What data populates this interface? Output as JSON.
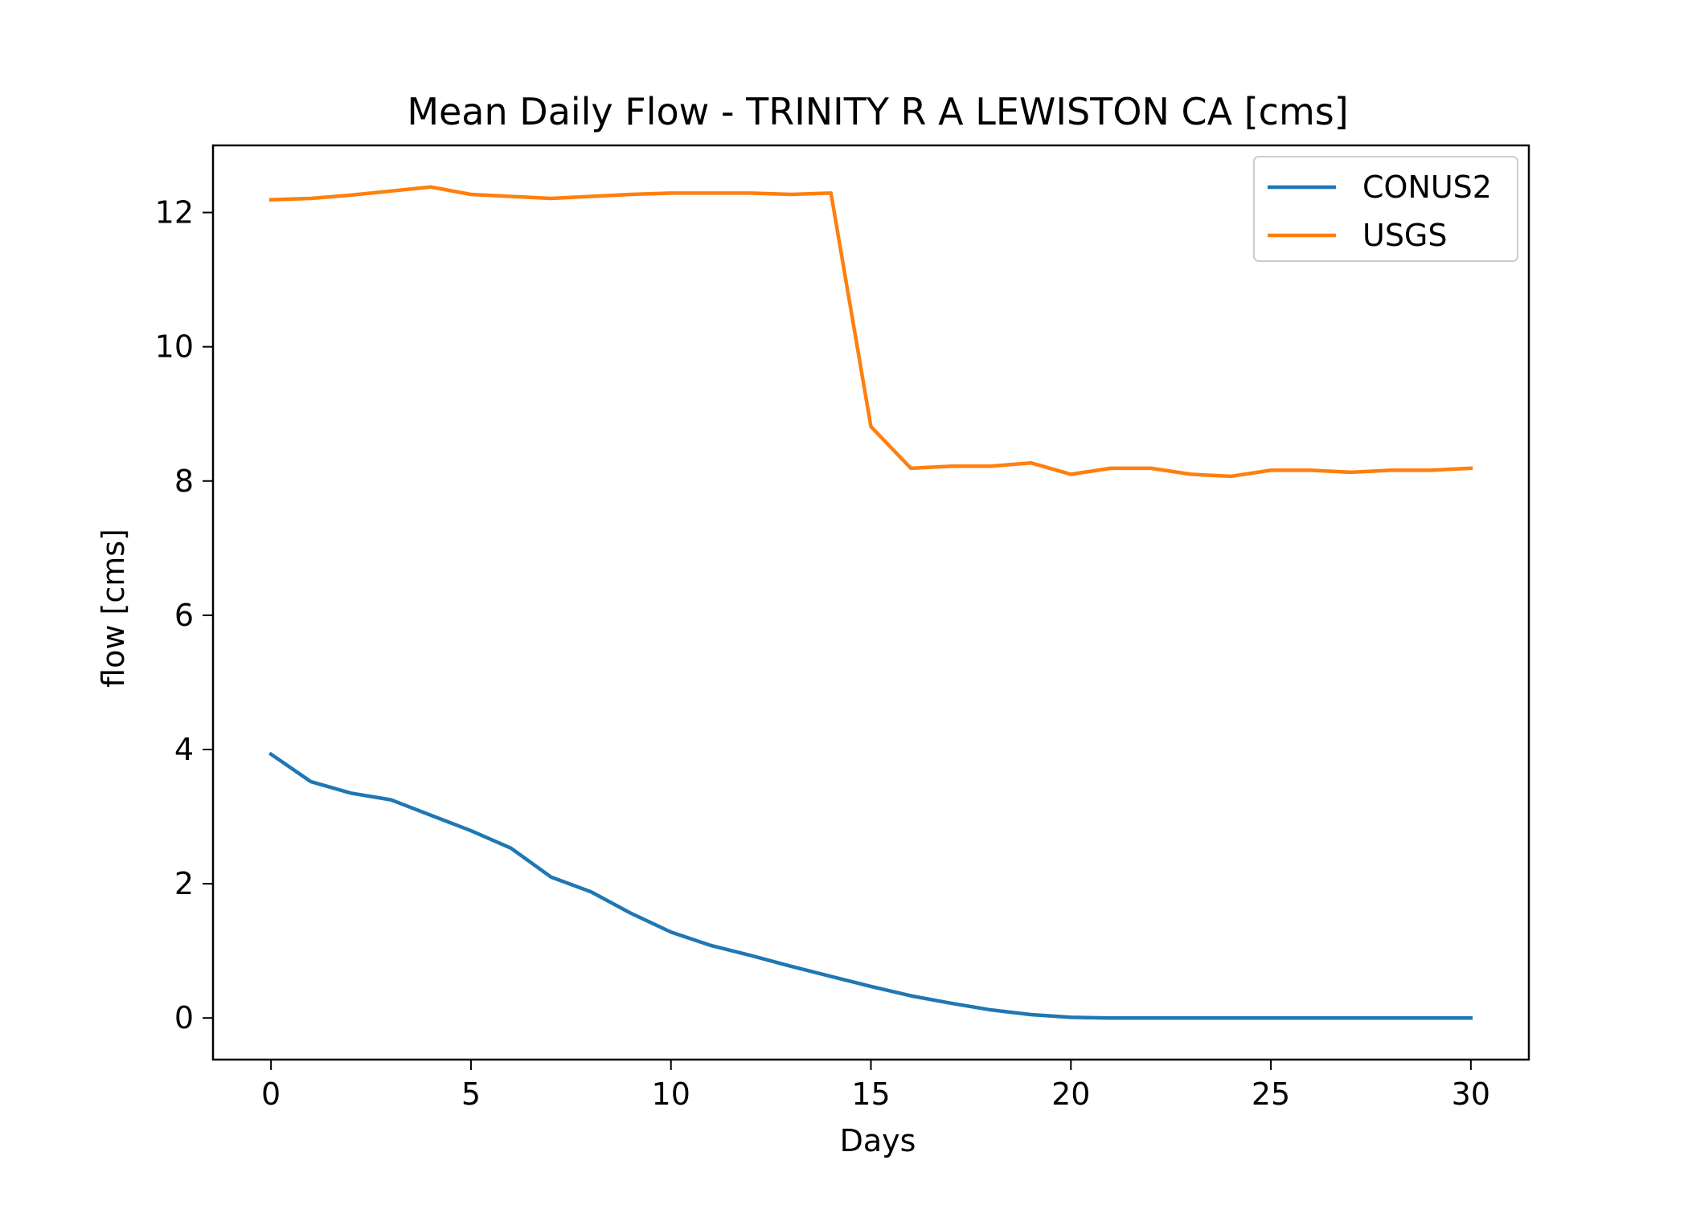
{
  "chart_data": {
    "type": "line",
    "title": "Mean Daily Flow - TRINITY R A LEWISTON CA [cms]",
    "xlabel": "Days",
    "ylabel": "flow [cms]",
    "xlim": [
      -1.45,
      31.45
    ],
    "ylim": [
      -0.62,
      13.0
    ],
    "xticks": [
      0,
      5,
      10,
      15,
      20,
      25,
      30
    ],
    "yticks": [
      0,
      2,
      4,
      6,
      8,
      10,
      12
    ],
    "grid": false,
    "legend_position": "upper right",
    "x": [
      0,
      1,
      2,
      3,
      4,
      5,
      6,
      7,
      8,
      9,
      10,
      11,
      12,
      13,
      14,
      15,
      16,
      17,
      18,
      19,
      20,
      21,
      22,
      23,
      24,
      25,
      26,
      27,
      28,
      29,
      30
    ],
    "series": [
      {
        "name": "CONUS2",
        "color": "#1f77b4",
        "values": [
          3.93,
          3.52,
          3.35,
          3.25,
          3.02,
          2.79,
          2.53,
          2.1,
          1.88,
          1.56,
          1.28,
          1.08,
          0.93,
          0.77,
          0.62,
          0.47,
          0.33,
          0.22,
          0.12,
          0.05,
          0.01,
          0.0,
          0.0,
          0.0,
          0.0,
          0.0,
          0.0,
          0.0,
          0.0,
          0.0,
          0.0
        ]
      },
      {
        "name": "USGS",
        "color": "#ff7f0e",
        "values": [
          12.19,
          12.21,
          12.26,
          12.32,
          12.38,
          12.27,
          12.24,
          12.21,
          12.24,
          12.27,
          12.29,
          12.29,
          12.29,
          12.27,
          12.29,
          8.81,
          8.19,
          8.22,
          8.22,
          8.27,
          8.1,
          8.19,
          8.19,
          8.1,
          8.07,
          8.16,
          8.16,
          8.13,
          8.16,
          8.16,
          8.19
        ]
      }
    ]
  }
}
